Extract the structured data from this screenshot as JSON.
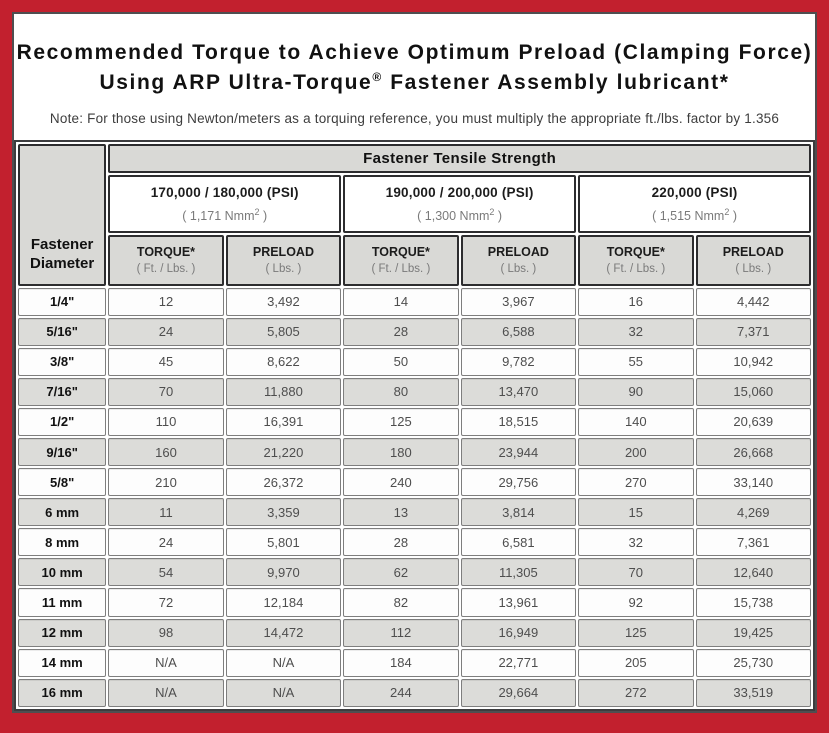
{
  "colors": {
    "frame_red": "#C2202E",
    "header_gray": "#D9D9D6",
    "row_alt_gray": "#DCDCD9",
    "frame_border_dark": "#4E4E50"
  },
  "title": {
    "line1": "Recommended Torque to Achieve Optimum Preload (Clamping Force)",
    "line2_pre": "Using ARP Ultra-Torque",
    "line2_sup": "®",
    "line2_post": " Fastener Assembly lubricant*",
    "note": "Note: For those using Newton/meters as a torquing reference, you must multiply the appropriate ft./lbs. factor by 1.356"
  },
  "table": {
    "main_header": "Fastener Tensile Strength",
    "corner_header_line1": "Fastener",
    "corner_header_line2": "Diameter",
    "groups": [
      {
        "psi": "170,000 / 180,000 (PSI)",
        "nmm_pre": "( 1,171 Nmm",
        "nmm_sup": "2",
        "nmm_post": " )"
      },
      {
        "psi": "190,000 / 200,000 (PSI)",
        "nmm_pre": "( 1,300 Nmm",
        "nmm_sup": "2",
        "nmm_post": " )"
      },
      {
        "psi": "220,000 (PSI)",
        "nmm_pre": "( 1,515 Nmm",
        "nmm_sup": "2",
        "nmm_post": " )"
      }
    ],
    "col_headers": {
      "torque_label": "TORQUE*",
      "torque_unit": "( Ft. / Lbs. )",
      "preload_label": "PRELOAD",
      "preload_unit": "( Lbs. )"
    },
    "rows": [
      {
        "diameter": "1/4\"",
        "values": [
          "12",
          "3,492",
          "14",
          "3,967",
          "16",
          "4,442"
        ]
      },
      {
        "diameter": "5/16\"",
        "values": [
          "24",
          "5,805",
          "28",
          "6,588",
          "32",
          "7,371"
        ]
      },
      {
        "diameter": "3/8\"",
        "values": [
          "45",
          "8,622",
          "50",
          "9,782",
          "55",
          "10,942"
        ]
      },
      {
        "diameter": "7/16\"",
        "values": [
          "70",
          "11,880",
          "80",
          "13,470",
          "90",
          "15,060"
        ]
      },
      {
        "diameter": "1/2\"",
        "values": [
          "110",
          "16,391",
          "125",
          "18,515",
          "140",
          "20,639"
        ]
      },
      {
        "diameter": "9/16\"",
        "values": [
          "160",
          "21,220",
          "180",
          "23,944",
          "200",
          "26,668"
        ]
      },
      {
        "diameter": "5/8\"",
        "values": [
          "210",
          "26,372",
          "240",
          "29,756",
          "270",
          "33,140"
        ]
      },
      {
        "diameter": "6 mm",
        "values": [
          "11",
          "3,359",
          "13",
          "3,814",
          "15",
          "4,269"
        ]
      },
      {
        "diameter": "8 mm",
        "values": [
          "24",
          "5,801",
          "28",
          "6,581",
          "32",
          "7,361"
        ]
      },
      {
        "diameter": "10 mm",
        "values": [
          "54",
          "9,970",
          "62",
          "11,305",
          "70",
          "12,640"
        ]
      },
      {
        "diameter": "11 mm",
        "values": [
          "72",
          "12,184",
          "82",
          "13,961",
          "92",
          "15,738"
        ]
      },
      {
        "diameter": "12 mm",
        "values": [
          "98",
          "14,472",
          "112",
          "16,949",
          "125",
          "19,425"
        ]
      },
      {
        "diameter": "14 mm",
        "values": [
          "N/A",
          "N/A",
          "184",
          "22,771",
          "205",
          "25,730"
        ]
      },
      {
        "diameter": "16 mm",
        "values": [
          "N/A",
          "N/A",
          "244",
          "29,664",
          "272",
          "33,519"
        ]
      }
    ]
  }
}
